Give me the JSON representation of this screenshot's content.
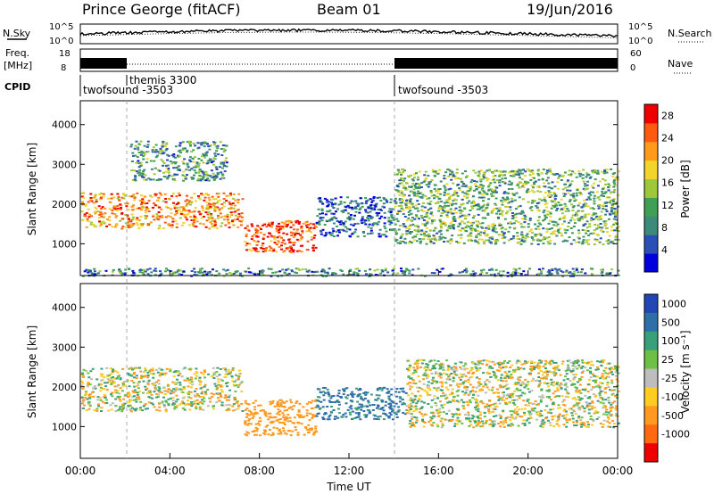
{
  "header": {
    "station": "Prince George (fitACF)",
    "beam": "Beam 01",
    "date": "19/Jun/2016"
  },
  "top_strip": {
    "nsky_label": "N.Sky",
    "nsky_ticks": [
      "10^5",
      "10^0"
    ],
    "nsearch_label": "N.Search",
    "nsearch_ticks": [
      "10^5",
      "10^0"
    ],
    "freq_label_1": "Freq.",
    "freq_label_2": "[MHz]",
    "freq_ticks": [
      "18",
      "8"
    ],
    "nave_label": "Nave",
    "nave_ticks": [
      "60",
      "0"
    ],
    "cpid_label": "CPID",
    "cpid_segments": [
      {
        "name": "twofsound -3503",
        "start": 0,
        "end": 2
      },
      {
        "name": "themis 3300",
        "start": 2,
        "end": 14
      },
      {
        "name": "twofsound -3503",
        "start": 14,
        "end": 24
      }
    ]
  },
  "colors": {
    "power_scale": [
      "#0000dd",
      "#2a4fb5",
      "#3e8a7a",
      "#3fa055",
      "#9ec83a",
      "#f2d42a",
      "#ff9a1a",
      "#ff5a10",
      "#ee0000"
    ],
    "velocity_scale": [
      "#2246b4",
      "#2f6fa8",
      "#3aa07a",
      "#6cc045",
      "#bdbdbd",
      "#ffcc22",
      "#ff9920",
      "#ff6a10",
      "#ee0000"
    ]
  },
  "chart_data": [
    {
      "type": "heatmap",
      "panel": "power",
      "title": "",
      "xlabel": "Time UT",
      "ylabel": "Slant Range [km]",
      "xlim": [
        0,
        24
      ],
      "ylim": [
        200,
        4600
      ],
      "xticks": [
        "00:00",
        "04:00",
        "08:00",
        "12:00",
        "16:00",
        "20:00",
        "00:00"
      ],
      "yticks": [
        "1000",
        "2000",
        "3000",
        "4000"
      ],
      "colorbar": {
        "label": "Power [dB]",
        "ticks": [
          "4",
          "8",
          "12",
          "16",
          "20",
          "24",
          "28"
        ],
        "range": [
          0,
          30
        ]
      },
      "regions": [
        {
          "t0": 0.0,
          "t1": 7.2,
          "r0": 1400,
          "r1": 2300,
          "value": 22
        },
        {
          "t0": 2.2,
          "t1": 6.5,
          "r0": 2600,
          "r1": 3600,
          "value": 10
        },
        {
          "t0": 7.3,
          "t1": 10.5,
          "r0": 800,
          "r1": 1600,
          "value": 26
        },
        {
          "t0": 10.5,
          "t1": 14.0,
          "r0": 1200,
          "r1": 2200,
          "value": 6
        },
        {
          "t0": 14.0,
          "t1": 24.0,
          "r0": 1000,
          "r1": 2900,
          "value": 12
        },
        {
          "t0": 0.0,
          "t1": 24.0,
          "r0": 200,
          "r1": 400,
          "value": 8
        }
      ]
    },
    {
      "type": "heatmap",
      "panel": "velocity",
      "title": "",
      "xlabel": "Time UT",
      "ylabel": "Slant Range [km]",
      "xlim": [
        0,
        24
      ],
      "ylim": [
        200,
        4600
      ],
      "xticks": [
        "00:00",
        "04:00",
        "08:00",
        "12:00",
        "16:00",
        "20:00",
        "00:00"
      ],
      "yticks": [
        "1000",
        "2000",
        "3000",
        "4000"
      ],
      "colorbar": {
        "label": "Velocity [m s⁻¹]",
        "ticks": [
          "1000",
          "500",
          "100",
          "25",
          "-25",
          "-100",
          "-500",
          "-1000"
        ]
      },
      "regions": [
        {
          "t0": 0.0,
          "t1": 7.2,
          "r0": 1400,
          "r1": 2500,
          "value": 0
        },
        {
          "t0": 7.3,
          "t1": 10.5,
          "r0": 800,
          "r1": 1700,
          "value": -300
        },
        {
          "t0": 10.5,
          "t1": 14.5,
          "r0": 1200,
          "r1": 2000,
          "value": 600
        },
        {
          "t0": 14.5,
          "t1": 24.0,
          "r0": 1000,
          "r1": 2700,
          "value": 0
        }
      ]
    }
  ]
}
